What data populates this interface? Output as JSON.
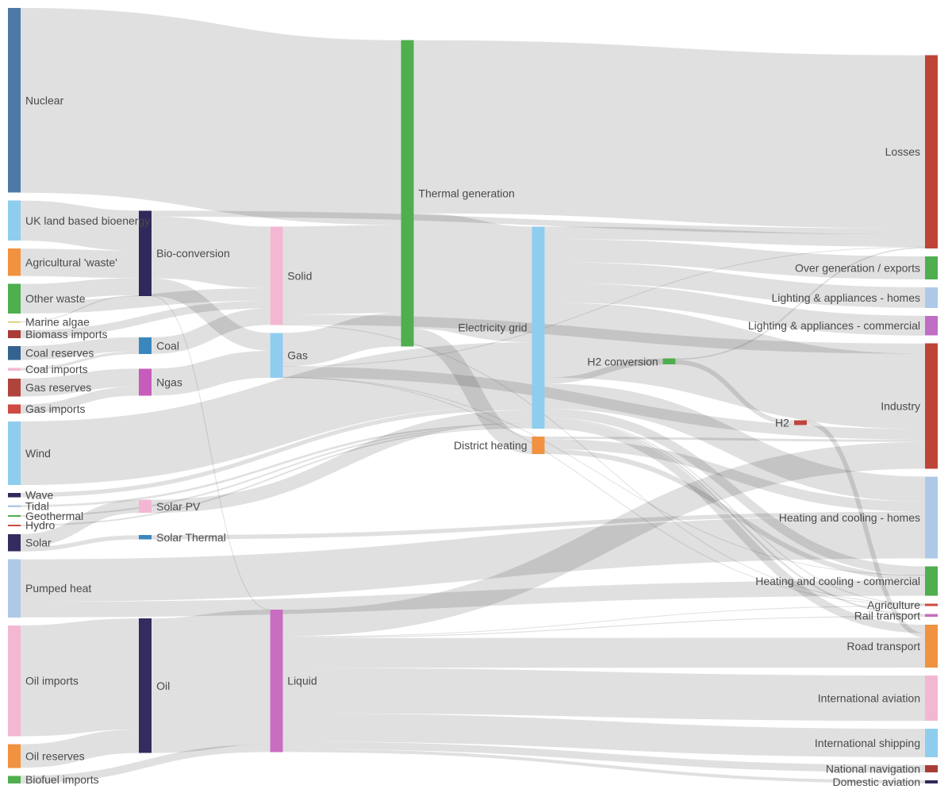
{
  "chart_data": {
    "type": "sankey",
    "background": "#ffffff",
    "link_color": "#000000",
    "link_opacity": 0.12,
    "label_color": "#4a4a4a",
    "nodes": [
      {
        "name": "Nuclear",
        "color": "#4e79a7",
        "column": 0
      },
      {
        "name": "UK land based bioenergy",
        "color": "#8fcdee",
        "column": 0
      },
      {
        "name": "Agricultural 'waste'",
        "color": "#f0923f",
        "column": 0
      },
      {
        "name": "Other waste",
        "color": "#4fae4e",
        "column": 0
      },
      {
        "name": "Marine algae",
        "color": "#d2c95f",
        "column": 0
      },
      {
        "name": "Biomass imports",
        "color": "#a93c36",
        "column": 0
      },
      {
        "name": "Coal reserves",
        "color": "#35638f",
        "column": 0
      },
      {
        "name": "Coal imports",
        "color": "#f3b7d3",
        "column": 0
      },
      {
        "name": "Gas reserves",
        "color": "#b0433c",
        "column": 0
      },
      {
        "name": "Gas imports",
        "color": "#ce4a42",
        "column": 0
      },
      {
        "name": "Wind",
        "color": "#8fcdee",
        "column": 0
      },
      {
        "name": "Wave",
        "color": "#2f2a5b",
        "column": 0
      },
      {
        "name": "Geothermal",
        "color": "#4fae4e",
        "column": 0
      },
      {
        "name": "Hydro",
        "color": "#ce4a42",
        "column": 0
      },
      {
        "name": "Tidal",
        "color": "#aec9e8",
        "column": 0
      },
      {
        "name": "Solar",
        "color": "#332c5e",
        "column": 0
      },
      {
        "name": "Pumped heat",
        "color": "#aec9e8",
        "column": 0
      },
      {
        "name": "Oil imports",
        "color": "#f3b7d3",
        "column": 0
      },
      {
        "name": "Oil reserves",
        "color": "#f0923f",
        "column": 0
      },
      {
        "name": "Biofuel imports",
        "color": "#4fae4e",
        "column": 0
      },
      {
        "name": "Bio-conversion",
        "color": "#2f2a5b",
        "column": 1
      },
      {
        "name": "Coal",
        "color": "#3a87bd",
        "column": 1
      },
      {
        "name": "Ngas",
        "color": "#c85cba",
        "column": 1
      },
      {
        "name": "Solar PV",
        "color": "#f3b7d3",
        "column": 1
      },
      {
        "name": "Solar Thermal",
        "color": "#3a87bd",
        "column": 1
      },
      {
        "name": "Oil",
        "color": "#332c5e",
        "column": 1
      },
      {
        "name": "Solid",
        "color": "#f3b7d3",
        "column": 2
      },
      {
        "name": "Gas",
        "color": "#8fcdee",
        "column": 2
      },
      {
        "name": "Liquid",
        "color": "#c96dc0",
        "column": 2
      },
      {
        "name": "Thermal generation",
        "color": "#4fae4e",
        "column": 3
      },
      {
        "name": "Electricity grid",
        "color": "#8fcdee",
        "column": 4
      },
      {
        "name": "District heating",
        "color": "#f0923f",
        "column": 4
      },
      {
        "name": "H2 conversion",
        "color": "#4fae4e",
        "column": 5
      },
      {
        "name": "H2",
        "color": "#c0453b",
        "column": 6
      },
      {
        "name": "Losses",
        "color": "#bf4438",
        "column": 7
      },
      {
        "name": "Over generation / exports",
        "color": "#4fae4e",
        "column": 7
      },
      {
        "name": "Lighting & appliances - homes",
        "color": "#aec9e8",
        "column": 7
      },
      {
        "name": "Lighting & appliances - commercial",
        "color": "#c06dc4",
        "column": 7
      },
      {
        "name": "Industry",
        "color": "#bf4438",
        "column": 7
      },
      {
        "name": "Heating and cooling - homes",
        "color": "#aec9e8",
        "column": 7
      },
      {
        "name": "Heating and cooling - commercial",
        "color": "#4fae4e",
        "column": 7
      },
      {
        "name": "Agriculture",
        "color": "#ce4a42",
        "column": 7
      },
      {
        "name": "Rail transport",
        "color": "#c96dc0",
        "column": 7
      },
      {
        "name": "Road transport",
        "color": "#f0923f",
        "column": 7
      },
      {
        "name": "International aviation",
        "color": "#f3b7d3",
        "column": 7
      },
      {
        "name": "International shipping",
        "color": "#8fcdee",
        "column": 7
      },
      {
        "name": "National navigation",
        "color": "#a93c36",
        "column": 7
      },
      {
        "name": "Domestic aviation",
        "color": "#2f2a5b",
        "column": 7
      }
    ],
    "links": [
      {
        "source": "Nuclear",
        "target": "Thermal generation",
        "value": 839.978
      },
      {
        "source": "UK land based bioenergy",
        "target": "Bio-conversion",
        "value": 182.01
      },
      {
        "source": "Agricultural 'waste'",
        "target": "Bio-conversion",
        "value": 124.729
      },
      {
        "source": "Other waste",
        "target": "Bio-conversion",
        "value": 77.81
      },
      {
        "source": "Other waste",
        "target": "Solid",
        "value": 56.587
      },
      {
        "source": "Marine algae",
        "target": "Bio-conversion",
        "value": 4.375
      },
      {
        "source": "Biomass imports",
        "target": "Solid",
        "value": 35
      },
      {
        "source": "Coal reserves",
        "target": "Coal",
        "value": 63.965
      },
      {
        "source": "Coal imports",
        "target": "Coal",
        "value": 11.606
      },
      {
        "source": "Gas reserves",
        "target": "Ngas",
        "value": 82.233
      },
      {
        "source": "Gas imports",
        "target": "Ngas",
        "value": 40.719
      },
      {
        "source": "Wind",
        "target": "Electricity grid",
        "value": 289.366
      },
      {
        "source": "Wave",
        "target": "Electricity grid",
        "value": 19.013
      },
      {
        "source": "Geothermal",
        "target": "Electricity grid",
        "value": 7.013
      },
      {
        "source": "Hydro",
        "target": "Electricity grid",
        "value": 6.995
      },
      {
        "source": "Tidal",
        "target": "Electricity grid",
        "value": 9.452
      },
      {
        "source": "Solar",
        "target": "Solar PV",
        "value": 59.901
      },
      {
        "source": "Solar",
        "target": "Solar Thermal",
        "value": 19.263
      },
      {
        "source": "Solar PV",
        "target": "Electricity grid",
        "value": 59.901
      },
      {
        "source": "Solar Thermal",
        "target": "Heating and cooling - homes",
        "value": 19.263
      },
      {
        "source": "Pumped heat",
        "target": "Heating and cooling - homes",
        "value": 193.026
      },
      {
        "source": "Pumped heat",
        "target": "Heating and cooling - commercial",
        "value": 70.672
      },
      {
        "source": "Oil imports",
        "target": "Oil",
        "value": 504.287
      },
      {
        "source": "Oil reserves",
        "target": "Oil",
        "value": 107.703
      },
      {
        "source": "Biofuel imports",
        "target": "Liquid",
        "value": 35
      },
      {
        "source": "Bio-conversion",
        "target": "Solid",
        "value": 280.322
      },
      {
        "source": "Bio-conversion",
        "target": "Gas",
        "value": 81.144
      },
      {
        "source": "Bio-conversion",
        "target": "Liquid",
        "value": 0.597
      },
      {
        "source": "Bio-conversion",
        "target": "Losses",
        "value": 26.862
      },
      {
        "source": "Coal",
        "target": "Solid",
        "value": 75.571
      },
      {
        "source": "Ngas",
        "target": "Gas",
        "value": 122.952
      },
      {
        "source": "Oil",
        "target": "Liquid",
        "value": 611.99
      },
      {
        "source": "Solid",
        "target": "Thermal generation",
        "value": 400.12
      },
      {
        "source": "Solid",
        "target": "Industry",
        "value": 46.477
      },
      {
        "source": "Solid",
        "target": "Agriculture",
        "value": 0.882
      },
      {
        "source": "Gas",
        "target": "Thermal generation",
        "value": 151.891
      },
      {
        "source": "Gas",
        "target": "Industry",
        "value": 48.58
      },
      {
        "source": "Gas",
        "target": "Heating and cooling - commercial",
        "value": 0.129
      },
      {
        "source": "Gas",
        "target": "Agriculture",
        "value": 2.096
      },
      {
        "source": "Gas",
        "target": "Losses",
        "value": 1.401
      },
      {
        "source": "Liquid",
        "target": "Industry",
        "value": 121.066
      },
      {
        "source": "Liquid",
        "target": "International shipping",
        "value": 128.69
      },
      {
        "source": "Liquid",
        "target": "Road transport",
        "value": 135.835
      },
      {
        "source": "Liquid",
        "target": "International aviation",
        "value": 206.267
      },
      {
        "source": "Liquid",
        "target": "Domestic aviation",
        "value": 14.458
      },
      {
        "source": "Liquid",
        "target": "National navigation",
        "value": 33.218
      },
      {
        "source": "Liquid",
        "target": "Rail transport",
        "value": 4.413
      },
      {
        "source": "Liquid",
        "target": "Agriculture",
        "value": 3.64
      },
      {
        "source": "Thermal generation",
        "target": "Electricity grid",
        "value": 525.531
      },
      {
        "source": "Thermal generation",
        "target": "Losses",
        "value": 787.129
      },
      {
        "source": "Thermal generation",
        "target": "District heating",
        "value": 79.329
      },
      {
        "source": "Electricity grid",
        "target": "Over generation / exports",
        "value": 104.453
      },
      {
        "source": "Electricity grid",
        "target": "Losses",
        "value": 56.691
      },
      {
        "source": "Electricity grid",
        "target": "Industry",
        "value": 342.165
      },
      {
        "source": "Electricity grid",
        "target": "Heating and cooling - homes",
        "value": 113.726
      },
      {
        "source": "Electricity grid",
        "target": "Heating and cooling - commercial",
        "value": 40.858
      },
      {
        "source": "Electricity grid",
        "target": "Lighting & appliances - homes",
        "value": 93.494
      },
      {
        "source": "Electricity grid",
        "target": "Lighting & appliances - commercial",
        "value": 90.008
      },
      {
        "source": "Electricity grid",
        "target": "H2 conversion",
        "value": 27.14
      },
      {
        "source": "Electricity grid",
        "target": "Road transport",
        "value": 37.797
      },
      {
        "source": "Electricity grid",
        "target": "Rail transport",
        "value": 7.863
      },
      {
        "source": "Electricity grid",
        "target": "Agriculture",
        "value": 4.412
      },
      {
        "source": "District heating",
        "target": "Heating and cooling - homes",
        "value": 46.184
      },
      {
        "source": "District heating",
        "target": "Heating and cooling - commercial",
        "value": 22.505
      },
      {
        "source": "District heating",
        "target": "Industry",
        "value": 10.639
      },
      {
        "source": "H2 conversion",
        "target": "H2",
        "value": 20.897
      },
      {
        "source": "H2 conversion",
        "target": "Losses",
        "value": 6.242
      },
      {
        "source": "H2",
        "target": "Road transport",
        "value": 20.897
      }
    ]
  }
}
